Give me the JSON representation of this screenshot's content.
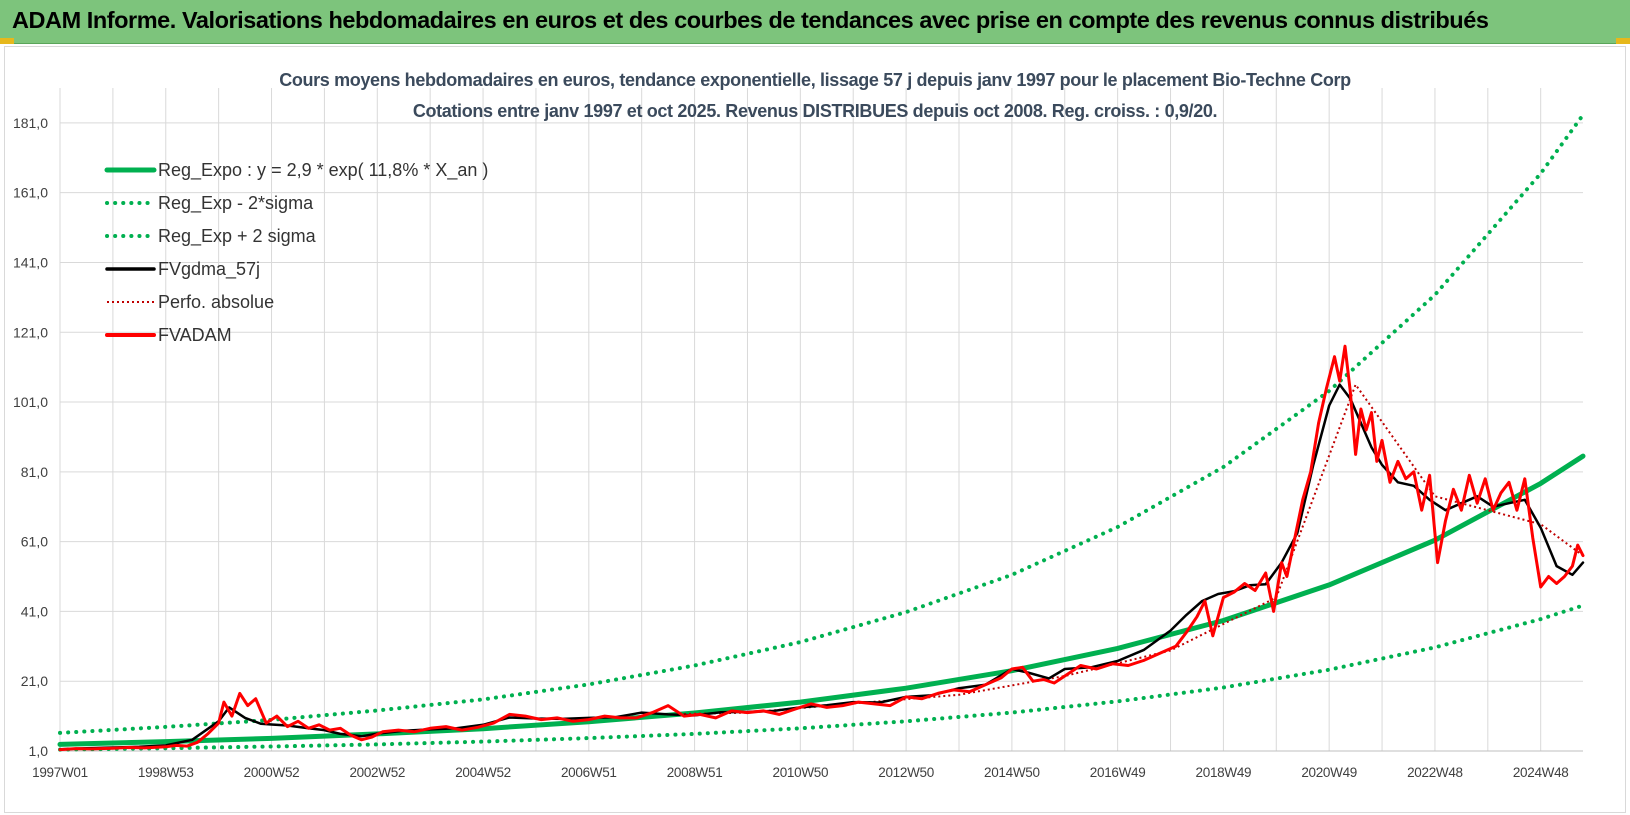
{
  "header": {
    "title": "ADAM Informe. Valorisations hebdomadaires en euros et des courbes de tendances avec prise en compte des revenus connus distribués"
  },
  "colors": {
    "banner": "#7dc47c",
    "trend": "#00b050",
    "gdma": "#000000",
    "fvadam": "#ff0000",
    "perfo": "#c00000"
  },
  "chart_data": {
    "type": "line",
    "title": [
      "Cours moyens hebdomadaires en euros, tendance exponentielle, lissage 57 j depuis janv 1997 pour le placement Bio-Techne Corp",
      "Cotations entre janv 1997 et oct 2025. Revenus DISTRIBUES depuis oct 2008.  Reg. croiss. : 0,9/20."
    ],
    "xlabel": "",
    "ylabel": "",
    "x_range": [
      1997.0,
      2025.8
    ],
    "ylim": [
      1.0,
      191.0
    ],
    "y_ticks": [
      1.0,
      21.0,
      41.0,
      61.0,
      81.0,
      101.0,
      121.0,
      141.0,
      161.0,
      181.0
    ],
    "y_tick_labels": [
      "1,0",
      "21,0",
      "41,0",
      "61,0",
      "81,0",
      "101,0",
      "121,0",
      "141,0",
      "161,0",
      "181,0"
    ],
    "x_tick_labels": [
      "1997W01",
      "1998W53",
      "2000W52",
      "2002W52",
      "2004W52",
      "2006W51",
      "2008W51",
      "2010W50",
      "2012W50",
      "2014W50",
      "2016W49",
      "2018W49",
      "2020W49",
      "2022W48",
      "2024W48"
    ],
    "x_tick_positions": [
      1997.0,
      1999.0,
      2001.0,
      2003.0,
      2005.0,
      2007.0,
      2009.0,
      2011.0,
      2013.0,
      2015.0,
      2017.0,
      2019.0,
      2021.0,
      2023.0,
      2025.0
    ],
    "legend": [
      {
        "name": "Reg_Expo : y = 2,9 * exp( 11,8% *  X_an )",
        "color": "#00b050",
        "style": "solid",
        "key": "trend"
      },
      {
        "name": "Reg_Exp - 2*sigma",
        "color": "#00b050",
        "style": "dotted",
        "key": "lower"
      },
      {
        "name": "Reg_Exp + 2 sigma",
        "color": "#00b050",
        "style": "dotted",
        "key": "upper"
      },
      {
        "name": "FVgdma_57j",
        "color": "#000000",
        "style": "solid",
        "key": "gdma"
      },
      {
        "name": "Perfo. absolue",
        "color": "#c00000",
        "style": "dotted",
        "key": "perfo"
      },
      {
        "name": "FVADAM",
        "color": "#ff0000",
        "style": "solid",
        "key": "fvadam"
      }
    ],
    "series": [
      {
        "name": "Reg_Expo",
        "key": "trend",
        "x": [
          1997,
          1999,
          2001,
          2003,
          2005,
          2007,
          2009,
          2011,
          2013,
          2015,
          2017,
          2019,
          2021,
          2023,
          2025,
          2025.8
        ],
        "values": [
          2.9,
          3.7,
          4.6,
          5.9,
          7.4,
          9.4,
          11.9,
          15.0,
          19.0,
          24.0,
          30.4,
          38.4,
          48.6,
          61.4,
          77.7,
          85.5
        ]
      },
      {
        "name": "Reg_Exp - 2*sigma",
        "key": "lower",
        "x": [
          1997,
          1999,
          2001,
          2003,
          2005,
          2007,
          2009,
          2011,
          2013,
          2015,
          2017,
          2019,
          2021,
          2023,
          2025,
          2025.8
        ],
        "values": [
          1.4,
          1.8,
          2.3,
          2.9,
          3.7,
          4.7,
          5.9,
          7.5,
          9.5,
          12.0,
          15.2,
          19.2,
          24.3,
          30.7,
          38.8,
          42.7
        ]
      },
      {
        "name": "Reg_Exp + 2 sigma",
        "key": "upper",
        "x": [
          1997,
          1999,
          2001,
          2003,
          2005,
          2007,
          2009,
          2011,
          2013,
          2015,
          2017,
          2019,
          2021,
          2023,
          2025,
          2025.8
        ],
        "values": [
          6.2,
          7.9,
          9.9,
          12.6,
          15.8,
          20.1,
          25.5,
          32.2,
          40.8,
          51.5,
          65.2,
          82.4,
          104.2,
          131.7,
          166.5,
          183.3
        ]
      },
      {
        "name": "FVgdma_57j",
        "key": "gdma",
        "x": [
          1997.0,
          1997.5,
          1998.0,
          1998.5,
          1999.0,
          1999.5,
          2000.0,
          2000.2,
          2000.5,
          2000.8,
          2001.0,
          2001.3,
          2001.7,
          2002.0,
          2002.3,
          2002.7,
          2003.0,
          2003.5,
          2004.0,
          2004.5,
          2005.0,
          2005.5,
          2006.0,
          2006.5,
          2007.0,
          2007.5,
          2008.0,
          2008.5,
          2009.0,
          2009.5,
          2010.0,
          2010.5,
          2011.0,
          2011.5,
          2012.0,
          2012.5,
          2013.0,
          2013.5,
          2014.0,
          2014.5,
          2015.0,
          2015.3,
          2015.7,
          2016.0,
          2016.5,
          2017.0,
          2017.5,
          2018.0,
          2018.3,
          2018.6,
          2018.9,
          2019.2,
          2019.5,
          2019.8,
          2020.1,
          2020.4,
          2020.7,
          2021.0,
          2021.2,
          2021.4,
          2021.6,
          2021.8,
          2022.0,
          2022.3,
          2022.6,
          2022.9,
          2023.2,
          2023.5,
          2023.8,
          2024.1,
          2024.4,
          2024.7,
          2025.0,
          2025.3,
          2025.6,
          2025.8
        ],
        "values": [
          1.5,
          1.8,
          2.0,
          2.2,
          2.6,
          4.2,
          9.5,
          13.5,
          10.5,
          8.8,
          8.6,
          8.3,
          7.5,
          7.0,
          5.9,
          5.2,
          6.0,
          6.8,
          7.2,
          7.5,
          8.5,
          10.6,
          10.3,
          10.2,
          10.5,
          10.7,
          12.0,
          11.5,
          11.2,
          12.1,
          12.2,
          12.5,
          13.5,
          14.1,
          15.0,
          14.9,
          16.5,
          17.0,
          19.0,
          20.0,
          24.5,
          23.5,
          21.8,
          24.5,
          25.0,
          26.8,
          30.0,
          35.5,
          40.0,
          44.0,
          46.0,
          46.8,
          48.5,
          48.8,
          55.0,
          63.5,
          83.0,
          100.0,
          106.0,
          102.0,
          95.0,
          88.0,
          83.0,
          78.0,
          77.0,
          73.0,
          70.0,
          72.0,
          74.0,
          71.0,
          72.0,
          73.0,
          65.0,
          54.0,
          51.5,
          55.0
        ]
      },
      {
        "name": "Perfo. absolue",
        "key": "perfo",
        "x": [
          2008.8,
          2010.0,
          2012.0,
          2014.0,
          2016.0,
          2018.0,
          2020.0,
          2021.5,
          2023.0,
          2025.0,
          2025.8
        ],
        "values": [
          11.6,
          12.0,
          14.6,
          17.1,
          22.5,
          29.8,
          45.0,
          106.0,
          74.0,
          66.0,
          57.0
        ]
      },
      {
        "name": "FVADAM",
        "key": "fvadam",
        "x": [
          1997.0,
          1997.3,
          1997.6,
          1998.0,
          1998.3,
          1998.6,
          1999.0,
          1999.2,
          1999.4,
          1999.6,
          1999.8,
          2000.0,
          2000.1,
          2000.25,
          2000.4,
          2000.55,
          2000.7,
          2000.9,
          2001.1,
          2001.3,
          2001.5,
          2001.7,
          2001.9,
          2002.1,
          2002.3,
          2002.5,
          2002.7,
          2002.9,
          2003.1,
          2003.4,
          2003.7,
          2004.0,
          2004.3,
          2004.6,
          2004.9,
          2005.2,
          2005.5,
          2005.8,
          2006.1,
          2006.4,
          2006.7,
          2007.0,
          2007.3,
          2007.6,
          2007.9,
          2008.2,
          2008.5,
          2008.8,
          2009.1,
          2009.4,
          2009.7,
          2010.0,
          2010.3,
          2010.6,
          2010.9,
          2011.2,
          2011.5,
          2011.8,
          2012.1,
          2012.4,
          2012.7,
          2013.0,
          2013.3,
          2013.6,
          2013.9,
          2014.2,
          2014.5,
          2014.8,
          2015.0,
          2015.2,
          2015.4,
          2015.6,
          2015.8,
          2016.0,
          2016.3,
          2016.6,
          2016.9,
          2017.2,
          2017.5,
          2017.8,
          2018.1,
          2018.3,
          2018.5,
          2018.65,
          2018.8,
          2019.0,
          2019.2,
          2019.4,
          2019.6,
          2019.8,
          2019.95,
          2020.1,
          2020.2,
          2020.35,
          2020.5,
          2020.65,
          2020.8,
          2020.95,
          2021.1,
          2021.2,
          2021.3,
          2021.4,
          2021.5,
          2021.6,
          2021.7,
          2021.8,
          2021.9,
          2022.0,
          2022.15,
          2022.3,
          2022.45,
          2022.6,
          2022.75,
          2022.9,
          2023.05,
          2023.2,
          2023.35,
          2023.5,
          2023.65,
          2023.8,
          2023.95,
          2024.1,
          2024.25,
          2024.4,
          2024.55,
          2024.7,
          2024.85,
          2025.0,
          2025.15,
          2025.3,
          2025.45,
          2025.6,
          2025.7,
          2025.8
        ],
        "values": [
          1.4,
          1.7,
          1.6,
          1.8,
          2.0,
          1.9,
          2.2,
          2.6,
          2.4,
          3.5,
          6.0,
          9.0,
          15.0,
          11.0,
          17.5,
          14.0,
          16.0,
          9.0,
          11.0,
          8.0,
          9.5,
          7.5,
          8.5,
          7.0,
          7.5,
          5.5,
          4.2,
          5.0,
          6.5,
          7.0,
          6.5,
          7.5,
          8.0,
          7.0,
          7.8,
          9.0,
          11.5,
          11.0,
          10.0,
          10.5,
          9.5,
          10.0,
          11.0,
          10.5,
          10.5,
          12.0,
          14.0,
          11.0,
          11.5,
          10.5,
          12.5,
          12.0,
          12.5,
          11.5,
          13.0,
          14.5,
          13.5,
          14.0,
          15.0,
          14.5,
          14.0,
          16.5,
          16.0,
          17.5,
          18.5,
          18.0,
          20.0,
          22.0,
          24.5,
          25.0,
          21.0,
          21.5,
          20.5,
          22.5,
          25.5,
          24.5,
          26.0,
          25.5,
          27.0,
          29.0,
          31.0,
          35.0,
          39.5,
          44.0,
          34.0,
          45.0,
          46.5,
          49.0,
          47.0,
          52.0,
          41.0,
          55.0,
          51.0,
          62.0,
          73.0,
          81.0,
          95.0,
          105.0,
          114.0,
          107.0,
          117.0,
          104.0,
          86.0,
          99.0,
          93.0,
          98.0,
          84.0,
          90.0,
          78.0,
          84.0,
          79.0,
          81.0,
          70.0,
          80.0,
          55.0,
          67.0,
          76.0,
          70.0,
          80.0,
          72.0,
          79.0,
          70.0,
          75.0,
          78.0,
          70.0,
          79.0,
          62.0,
          48.0,
          51.0,
          49.0,
          51.0,
          54.0,
          60.0,
          57.0
        ]
      }
    ]
  }
}
